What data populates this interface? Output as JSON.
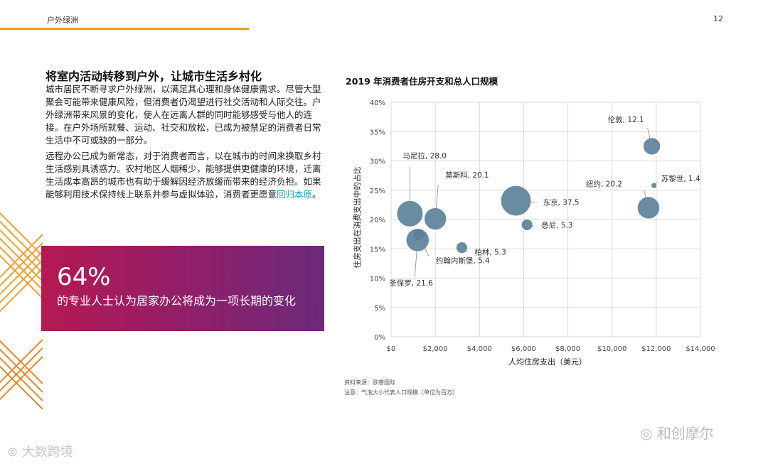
{
  "header": {
    "section": "户外绿洲",
    "page_number": "12"
  },
  "article": {
    "heading": "将室内活动转移到户外，让城市生活乡村化",
    "paragraph1": "城市居民不断寻求户外绿洲，以满足其心理和身体健康需求。尽管大型聚会可能带来健康风险，但消费者仍渴望进行社交活动和人际交往。户外绿洲带来风景的变化，使人在远离人群的同时能够感受与他人的连接。在户外场所就餐、运动、社交和放松，已成为被禁足的消费者日常生活中不可或缺的一部分。",
    "paragraph2": "远程办公已成为新常态，对于消费者而言，以在城市的时间来换取乡村生活感别具诱惑力。农村地区人烟稀少，能够提供更健康的环境，迁离生活成本高昂的城市也有助于缓解因经济放缓而带来的经济负担。如果能够利用技术保持线上联系并参与虚拟体验，消费者更愿意",
    "link_text": "回归本原",
    "paragraph2_end": "。"
  },
  "stat": {
    "value": "64%",
    "text": "的专业人士认为居家办公将成为一项长期的变化"
  },
  "chart_data": {
    "type": "scatter",
    "title": "2019 年消费者住房开支和总人口规模",
    "xlabel": "人均住房支出（美元）",
    "ylabel": "住房支出在消费支出中的占比",
    "xlim": [
      0,
      14000
    ],
    "ylim": [
      0,
      40
    ],
    "x_ticks": [
      "$0",
      "$2,000",
      "$4,000",
      "$6,000",
      "$8,000",
      "$10,000",
      "$12,000",
      "$14,000"
    ],
    "y_ticks": [
      "0%",
      "5%",
      "10%",
      "15%",
      "20%",
      "25%",
      "30%",
      "35%",
      "40%"
    ],
    "grid": true,
    "bubble_color": "#5a7f99",
    "points": [
      {
        "label": "伦敦, 12.1",
        "x": 11800,
        "y": 32.5,
        "size": 12.1
      },
      {
        "label": "苏黎世, 1.4",
        "x": 11900,
        "y": 25.8,
        "size": 1.4
      },
      {
        "label": "纽约, 20.2",
        "x": 11650,
        "y": 22.0,
        "size": 20.2
      },
      {
        "label": "东京, 37.5",
        "x": 5650,
        "y": 23.2,
        "size": 37.5
      },
      {
        "label": "悉尼, 5.3",
        "x": 6150,
        "y": 19.1,
        "size": 5.3
      },
      {
        "label": "马尼拉, 28.0",
        "x": 850,
        "y": 21.0,
        "size": 28.0
      },
      {
        "label": "莫斯科, 20.1",
        "x": 2000,
        "y": 20.1,
        "size": 20.1
      },
      {
        "label": "柏林, 5.3",
        "x": 3200,
        "y": 15.2,
        "size": 5.3
      },
      {
        "label": "约翰内斯堡, 5.4",
        "x": 1250,
        "y": 17.4,
        "size": 5.4
      },
      {
        "label": "圣保罗, 21.6",
        "x": 1200,
        "y": 16.5,
        "size": 21.6
      }
    ],
    "source": "资料来源：欧睿国际",
    "note": "注意：气泡大小代表人口规模（单位为百万）"
  },
  "watermarks": {
    "wechat": "和创摩尔",
    "bigdata": "大数跨境"
  },
  "icons": {
    "wechat": "wechat-icon",
    "bigdata": "bigdata-logo-icon"
  }
}
